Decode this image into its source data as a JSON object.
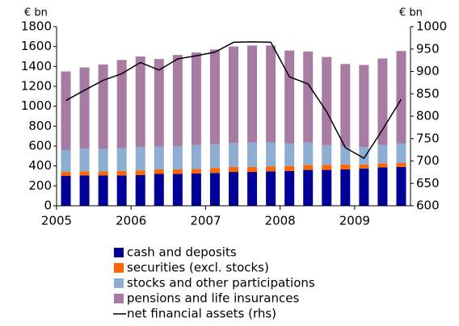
{
  "chart_data": {
    "type": "bar",
    "stacked": true,
    "ylabel": "€ bn",
    "y2label": "€ bn",
    "categories": [
      "2005",
      null,
      null,
      null,
      "2006",
      null,
      null,
      null,
      "2007",
      null,
      null,
      null,
      "2008",
      null,
      null,
      null,
      "2009",
      null,
      null
    ],
    "series": [
      {
        "name": "cash and deposits",
        "color": "#000099",
        "values": [
          300,
          305,
          305,
          305,
          310,
          320,
          320,
          325,
          330,
          340,
          340,
          345,
          350,
          360,
          360,
          365,
          375,
          385,
          390
        ]
      },
      {
        "name": "securities (excl. stocks)",
        "color": "#ff6600",
        "values": [
          40,
          40,
          40,
          45,
          45,
          45,
          45,
          45,
          50,
          50,
          50,
          50,
          50,
          50,
          50,
          50,
          40,
          40,
          40
        ]
      },
      {
        "name": "stocks and other participations",
        "color": "#8eadd3",
        "values": [
          220,
          230,
          225,
          230,
          235,
          230,
          235,
          240,
          240,
          240,
          245,
          240,
          225,
          225,
          200,
          175,
          175,
          185,
          195
        ]
      },
      {
        "name": "pensions and life insurances",
        "color": "#a87ba3",
        "values": [
          790,
          815,
          850,
          885,
          910,
          880,
          915,
          930,
          950,
          970,
          975,
          975,
          935,
          915,
          885,
          835,
          825,
          870,
          930
        ]
      },
      {
        "name": "net financial assets (rhs)",
        "color": "#000000",
        "type": "line",
        "axis": "y2",
        "values": [
          835,
          858,
          880,
          895,
          920,
          903,
          928,
          935,
          943,
          965,
          966,
          965,
          888,
          872,
          810,
          730,
          706,
          770,
          838
        ]
      }
    ],
    "ylim": [
      0,
      1800
    ],
    "yticks": [
      0,
      200,
      400,
      600,
      800,
      1000,
      1200,
      1400,
      1600,
      1800
    ],
    "y2lim": [
      600,
      1000
    ],
    "y2ticks": [
      600,
      650,
      700,
      750,
      800,
      850,
      900,
      950,
      1000
    ],
    "legend": "bottom"
  }
}
